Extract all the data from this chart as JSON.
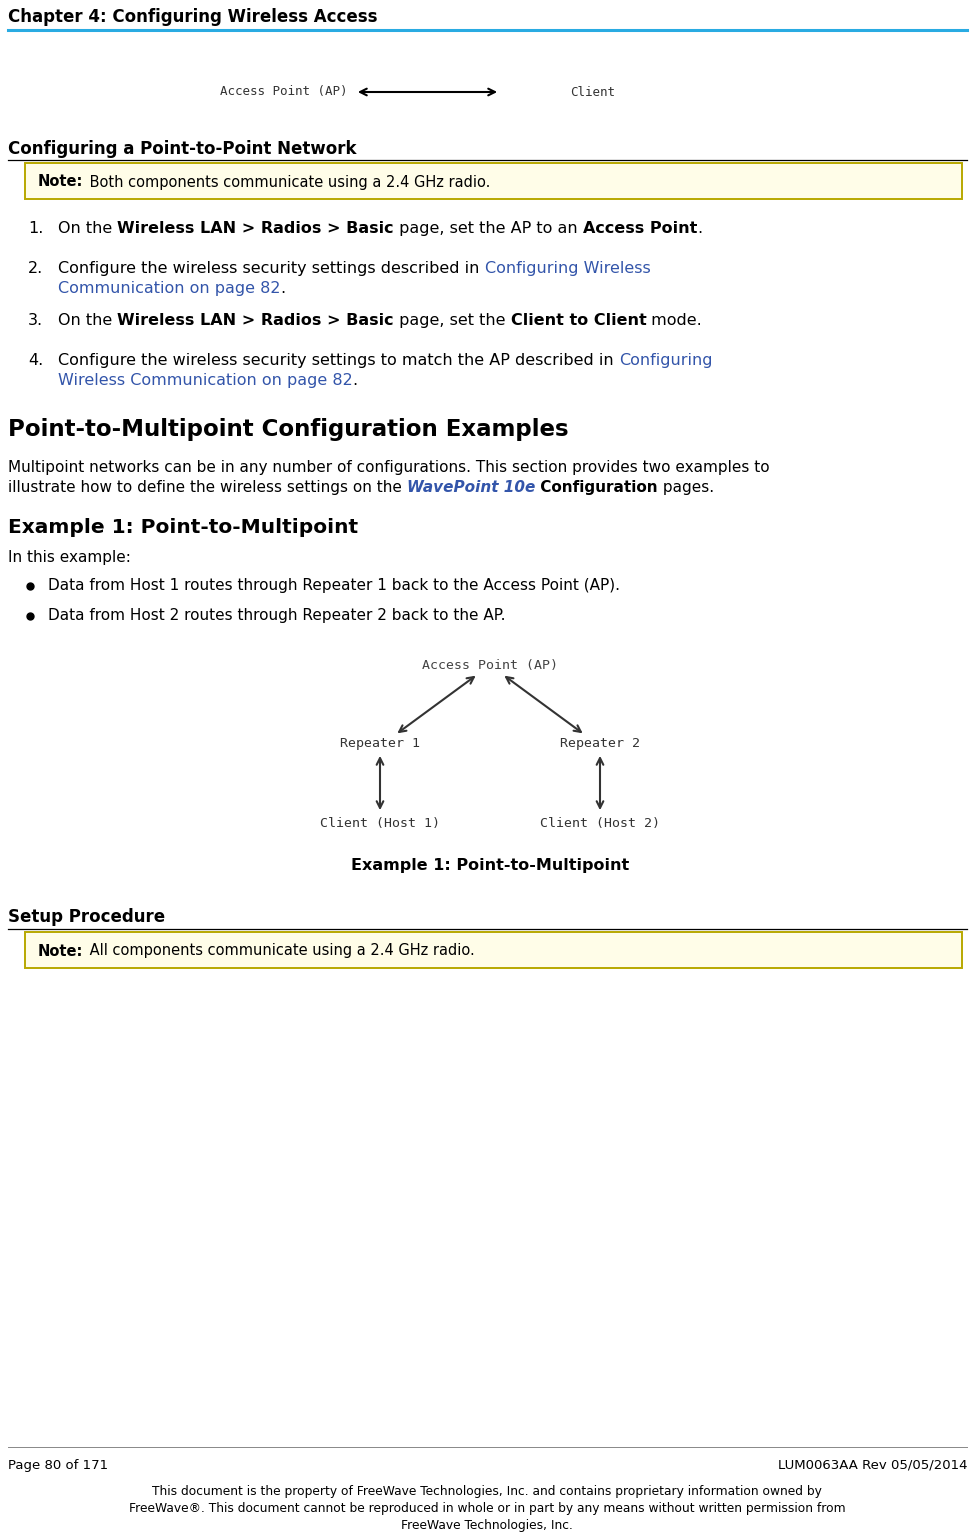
{
  "page_bg": "#ffffff",
  "header_text": "Chapter 4: Configuring Wireless Access",
  "header_line_color": "#29abe2",
  "section1_title": "Configuring a Point-to-Point Network",
  "note1_bg": "#fffff5",
  "note1_border_top": "#c8b400",
  "note1_border_bottom": "#c8b400",
  "note1_bold": "Note:",
  "note1_rest": " Both components communicate using a 2.4 GHz radio.",
  "note2_bold": "Note:",
  "note2_rest": " All components communicate using a 2.4 GHz radio.",
  "link_color": "#3355aa",
  "section2_title": "Point-to-Multipoint Configuration Examples",
  "section3_title": "Example 1: Point-to-Multipoint",
  "section3_intro": "In this example:",
  "bullets": [
    "Data from Host 1 routes through Repeater 1 back to the Access Point (AP).",
    "Data from Host 2 routes through Repeater 2 back to the AP."
  ],
  "diagram_caption": "Example 1: Point-to-Multipoint",
  "section4_title": "Setup Procedure",
  "footer_page": "Page 80 of 171",
  "footer_doc": "LUM0063AA Rev 05/05/2014",
  "footer_line1": "This document is the property of FreeWave Technologies, Inc. and contains proprietary information owned by",
  "footer_line2": "FreeWave®. This document cannot be reproduced in whole or in part by any means without written permission from",
  "footer_line3": "FreeWave Technologies, Inc."
}
